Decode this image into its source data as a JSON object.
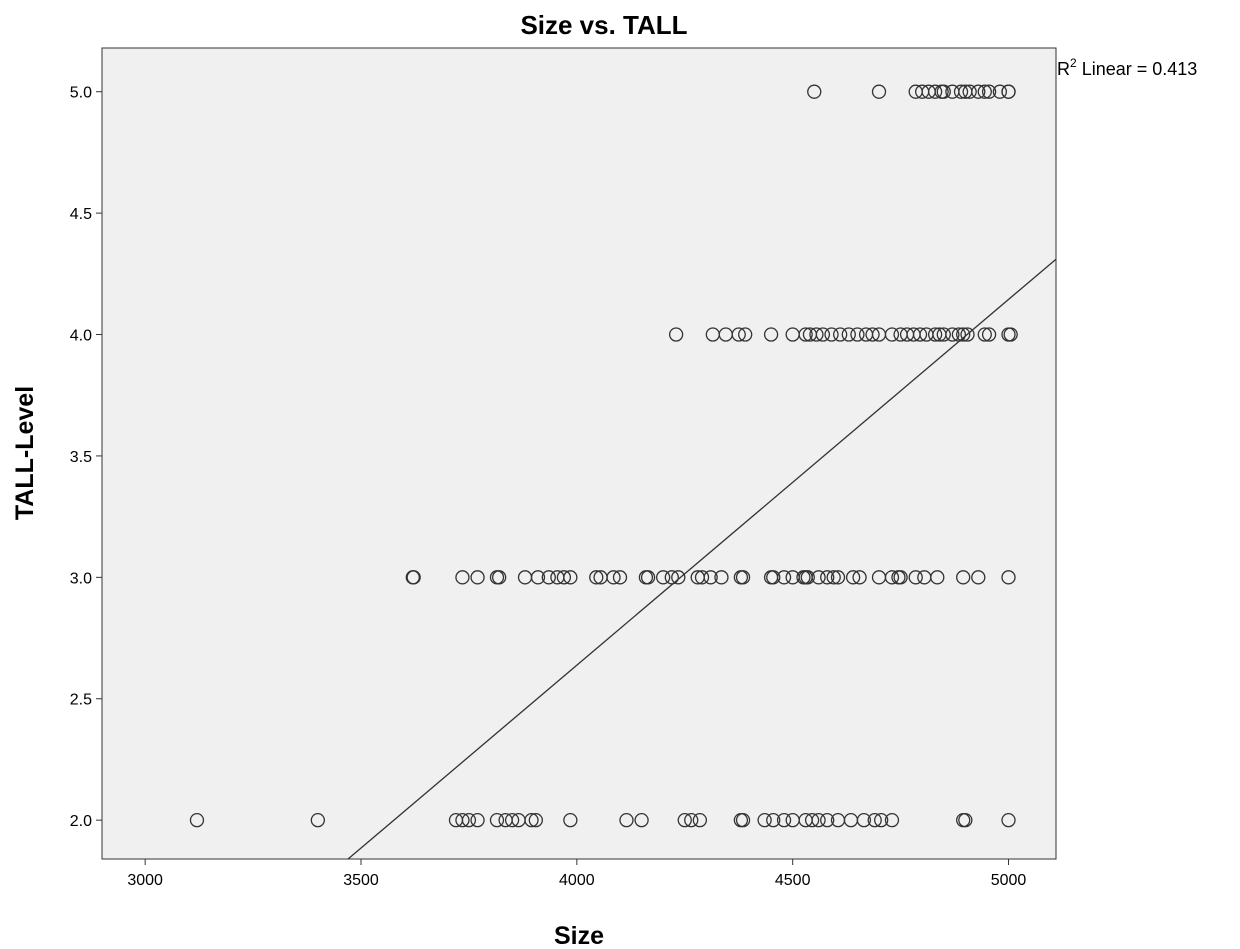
{
  "chart_data": {
    "type": "scatter",
    "title": "Size vs. TALL",
    "xlabel": "Size",
    "ylabel": "TALL-Level",
    "xlim": [
      2900,
      5110
    ],
    "ylim": [
      1.84,
      5.18
    ],
    "xticks": [
      3000,
      3500,
      4000,
      4500,
      5000
    ],
    "yticks": [
      2.0,
      2.5,
      3.0,
      3.5,
      4.0,
      4.5,
      5.0
    ],
    "xtick_labels": [
      "3000",
      "3500",
      "4000",
      "4500",
      "5000"
    ],
    "ytick_labels": [
      "2.0",
      "2.5",
      "3.0",
      "3.5",
      "4.0",
      "4.5",
      "5.0"
    ],
    "grid": false,
    "legend": "none",
    "colors": {
      "plot_background": "#f0f0f0",
      "marker_edge": "#333333",
      "fit_line": "#333333",
      "frame": "#333333"
    },
    "fit_line": {
      "type": "linear",
      "x": [
        3470,
        5110
      ],
      "y": [
        1.84,
        4.31
      ]
    },
    "annotation": {
      "base": "R",
      "superscript": "2",
      "text": " Linear = 0.413",
      "position": "top-right-outside"
    },
    "series": [
      {
        "level": 5.0,
        "x": [
          4550,
          4700,
          4785,
          4800,
          4815,
          4830,
          4845,
          4850,
          4870,
          4890,
          4900,
          4910,
          4930,
          4945,
          4955,
          4980,
          5000,
          5000
        ]
      },
      {
        "level": 4.0,
        "x": [
          4230,
          4315,
          4345,
          4375,
          4390,
          4450,
          4500,
          4530,
          4540,
          4555,
          4570,
          4590,
          4610,
          4630,
          4650,
          4670,
          4685,
          4700,
          4730,
          4750,
          4765,
          4780,
          4795,
          4810,
          4830,
          4840,
          4850,
          4870,
          4885,
          4895,
          4905,
          4945,
          4955,
          5000,
          5005
        ]
      },
      {
        "level": 3.0,
        "x": [
          3620,
          3622,
          3735,
          3770,
          3815,
          3820,
          3880,
          3910,
          3935,
          3955,
          3970,
          3985,
          4045,
          4055,
          4085,
          4100,
          4160,
          4165,
          4200,
          4220,
          4235,
          4280,
          4290,
          4310,
          4335,
          4380,
          4385,
          4450,
          4455,
          4480,
          4500,
          4525,
          4530,
          4535,
          4560,
          4580,
          4595,
          4605,
          4640,
          4655,
          4700,
          4730,
          4745,
          4750,
          4785,
          4805,
          4835,
          4895,
          4930,
          5000
        ]
      },
      {
        "level": 2.0,
        "x": [
          3120,
          3400,
          3720,
          3735,
          3750,
          3770,
          3815,
          3835,
          3850,
          3865,
          3895,
          3905,
          3985,
          4115,
          4150,
          4250,
          4265,
          4285,
          4380,
          4385,
          4435,
          4455,
          4480,
          4500,
          4530,
          4545,
          4560,
          4580,
          4605,
          4635,
          4665,
          4690,
          4705,
          4730,
          4895,
          4900,
          5000
        ]
      }
    ]
  }
}
